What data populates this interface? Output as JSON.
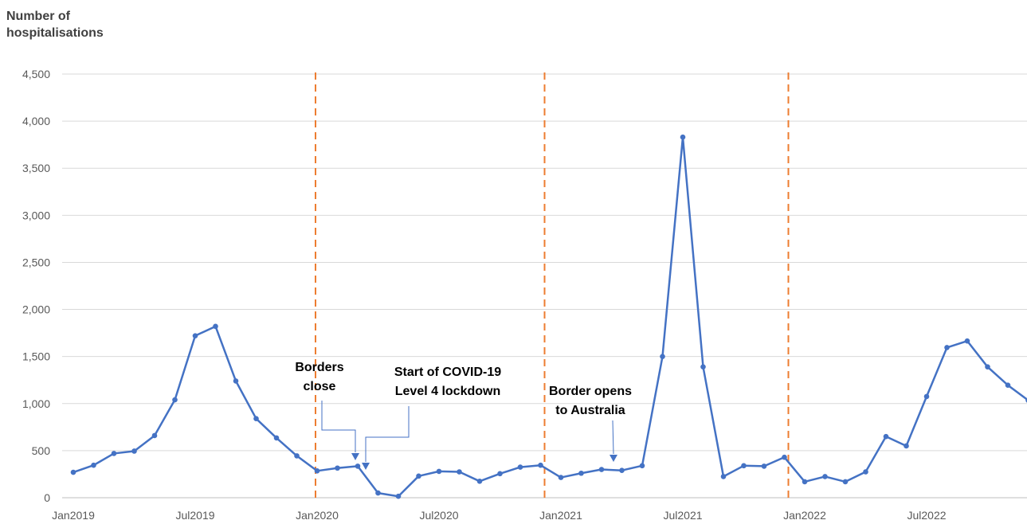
{
  "chart_data": {
    "type": "line",
    "ylabel_lines": [
      "Number of",
      "hospitalisations"
    ],
    "xlabel": "",
    "ylim": [
      0,
      4500
    ],
    "yticks": [
      0,
      500,
      1000,
      1500,
      2000,
      2500,
      3000,
      3500,
      4000,
      4500
    ],
    "ytick_labels": [
      "0",
      "500",
      "1,000",
      "1,500",
      "2,000",
      "2,500",
      "3,000",
      "3,500",
      "4,000",
      "4,500"
    ],
    "xtick_labels": [
      "Jan2019",
      "Jul2019",
      "Jan2020",
      "Jul2020",
      "Jan2021",
      "Jul2021",
      "Jan2022",
      "Jul2022"
    ],
    "grid": "horizontal",
    "x": [
      "2019-01",
      "2019-02",
      "2019-03",
      "2019-04",
      "2019-05",
      "2019-06",
      "2019-07",
      "2019-08",
      "2019-09",
      "2019-10",
      "2019-11",
      "2019-12",
      "2020-01",
      "2020-02",
      "2020-03",
      "2020-04",
      "2020-05",
      "2020-06",
      "2020-07",
      "2020-08",
      "2020-09",
      "2020-10",
      "2020-11",
      "2020-12",
      "2021-01",
      "2021-02",
      "2021-03",
      "2021-04",
      "2021-05",
      "2021-06",
      "2021-07",
      "2021-08",
      "2021-09",
      "2021-10",
      "2021-11",
      "2021-12",
      "2022-01",
      "2022-02",
      "2022-03",
      "2022-04",
      "2022-05",
      "2022-06",
      "2022-07",
      "2022-08",
      "2022-09",
      "2022-10",
      "2022-11",
      "2022-12"
    ],
    "series": [
      {
        "color": "#4472C4",
        "values": [
          270,
          345,
          470,
          495,
          660,
          1040,
          1720,
          1820,
          1240,
          840,
          635,
          445,
          285,
          315,
          335,
          50,
          15,
          230,
          280,
          275,
          175,
          255,
          325,
          345,
          215,
          260,
          300,
          290,
          340,
          1500,
          3830,
          1390,
          225,
          340,
          335,
          430,
          170,
          225,
          170,
          275,
          650,
          550,
          1075,
          1595,
          1665,
          1390,
          1195,
          1035
        ]
      }
    ],
    "vlines": [
      {
        "x": "2020-01",
        "color": "#ED7D31",
        "style": "dashed"
      },
      {
        "x": "2020-12",
        "color": "#ED7D31",
        "style": "dashed"
      },
      {
        "x": "2021-12",
        "color": "#ED7D31",
        "style": "dashed"
      }
    ],
    "annotations": [
      {
        "lines": [
          "Borders",
          "close"
        ],
        "target_x": "2020-03"
      },
      {
        "lines": [
          "Start of COVID-19",
          "Level 4 lockdown"
        ],
        "target_x": "2020-04"
      },
      {
        "lines": [
          "Border opens",
          "to Australia"
        ],
        "target_x": "2021-04"
      }
    ]
  }
}
